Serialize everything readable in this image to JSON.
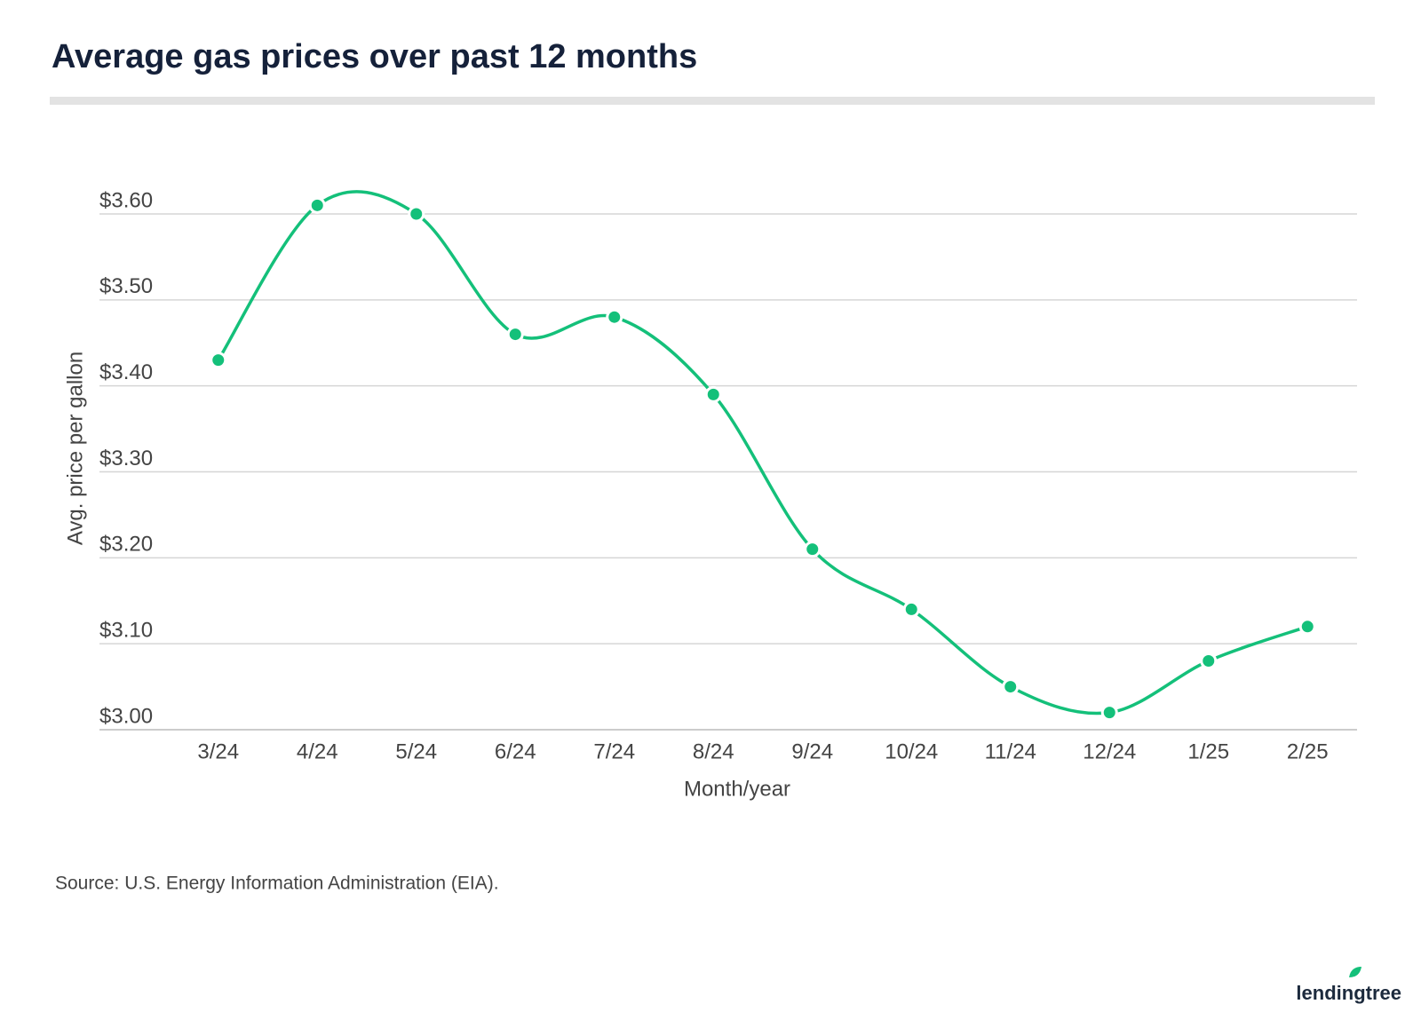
{
  "chart_data": {
    "type": "line",
    "title": "Average gas prices over past 12 months",
    "x_label": "Month/year",
    "y_label": "Avg. price per gallon",
    "categories": [
      "3/24",
      "4/24",
      "5/24",
      "6/24",
      "7/24",
      "8/24",
      "9/24",
      "10/24",
      "11/24",
      "12/24",
      "1/25",
      "2/25"
    ],
    "values": [
      3.43,
      3.61,
      3.6,
      3.46,
      3.48,
      3.39,
      3.21,
      3.14,
      3.05,
      3.02,
      3.08,
      3.12
    ],
    "color": "#14c07a",
    "ylim": [
      3.0,
      3.6
    ],
    "yticks": [
      {
        "value": 3.0,
        "label": "$3.00"
      },
      {
        "value": 3.1,
        "label": "$3.10"
      },
      {
        "value": 3.2,
        "label": "$3.20"
      },
      {
        "value": 3.3,
        "label": "$3.30"
      },
      {
        "value": 3.4,
        "label": "$3.40"
      },
      {
        "value": 3.5,
        "label": "$3.50"
      },
      {
        "value": 3.6,
        "label": "$3.60"
      }
    ],
    "grid": true,
    "source": "Source: U.S. Energy Information Administration (EIA).",
    "brand": "lendingtree"
  }
}
